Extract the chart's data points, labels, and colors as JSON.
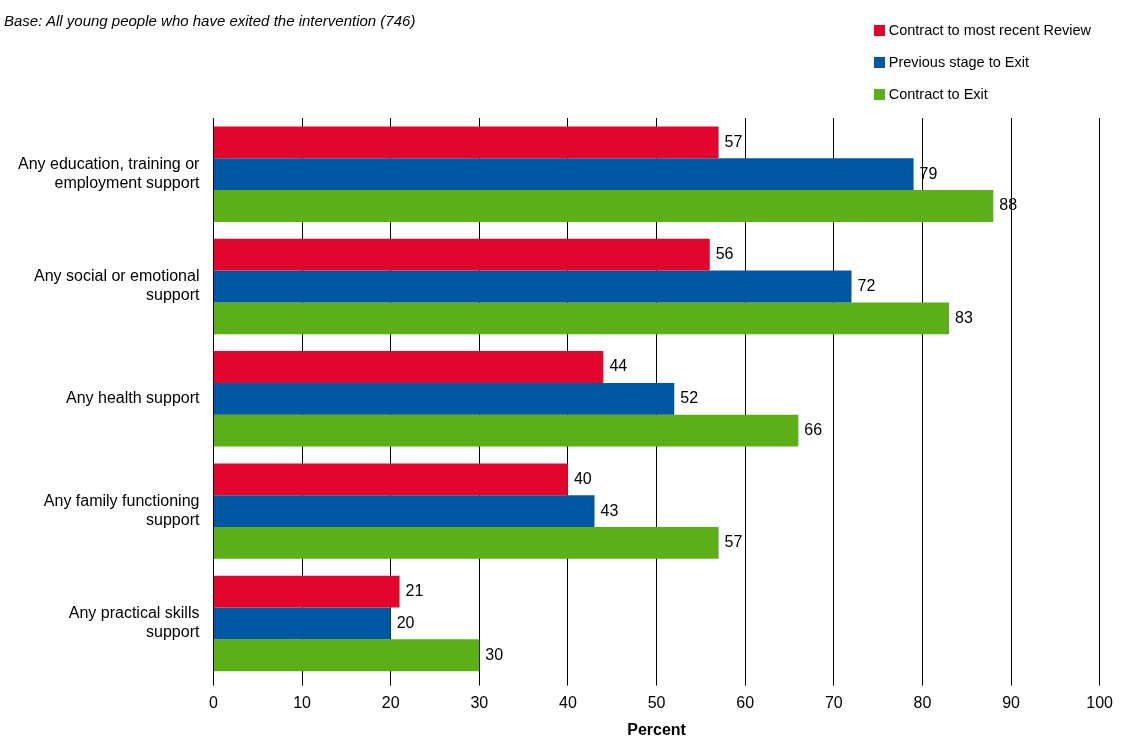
{
  "chart_data": {
    "type": "bar",
    "orientation": "horizontal",
    "xlabel": "Percent",
    "annotations": [
      "Base: All young people who have exited the intervention (746)"
    ],
    "categories": [
      "Any education, training or employment support",
      "Any social or emotional support",
      "Any health support",
      "Any family functioning support",
      "Any practical skills support"
    ],
    "series": [
      {
        "name": "Contract to most recent Review",
        "color": "#e2062c",
        "values": [
          57,
          56,
          44,
          40,
          21
        ]
      },
      {
        "name": "Previous stage to Exit",
        "color": "#0058a3",
        "values": [
          79,
          72,
          52,
          43,
          20
        ]
      },
      {
        "name": "Contract to Exit",
        "color": "#5bb018",
        "values": [
          88,
          83,
          66,
          57,
          30
        ]
      }
    ],
    "xlim": [
      0,
      100
    ],
    "xticks": [
      0,
      10,
      20,
      30,
      40,
      50,
      60,
      70,
      80,
      90,
      100
    ],
    "grid": "x",
    "legend": "top right",
    "data_labels": true
  }
}
